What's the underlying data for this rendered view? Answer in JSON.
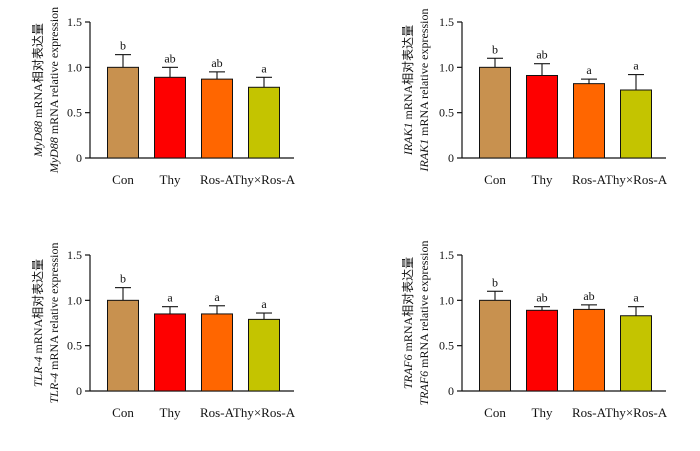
{
  "chart_data": [
    {
      "type": "bar",
      "categories": [
        "Con",
        "Thy",
        "Ros-A",
        "Thy×Ros-A"
      ],
      "values": [
        1.0,
        0.89,
        0.87,
        0.78
      ],
      "errors": [
        0.14,
        0.11,
        0.08,
        0.11
      ],
      "significance": [
        "b",
        "ab",
        "ab",
        "a"
      ],
      "ylabel_line1": {
        "gene": "MyD88",
        "rest": " mRNA相对表达量"
      },
      "ylabel_line2": {
        "gene": "MyD88",
        "rest": " mRNA relative expression"
      },
      "ylim": [
        0,
        1.5
      ],
      "yticks": [
        "0",
        "0.5",
        "1.0",
        "1.5"
      ],
      "colors": [
        "#c8914f",
        "#fe0000",
        "#ff6600",
        "#c4c400"
      ]
    },
    {
      "type": "bar",
      "categories": [
        "Con",
        "Thy",
        "Ros-A",
        "Thy×Ros-A"
      ],
      "values": [
        1.0,
        0.91,
        0.82,
        0.75
      ],
      "errors": [
        0.1,
        0.13,
        0.05,
        0.17
      ],
      "significance": [
        "b",
        "ab",
        "a",
        "a"
      ],
      "ylabel_line1": {
        "gene": "IRAK1",
        "rest": " mRNA相对表达量"
      },
      "ylabel_line2": {
        "gene": "IRAK1",
        "rest": " mRNA relative expression"
      },
      "ylim": [
        0,
        1.5
      ],
      "yticks": [
        "0",
        "0.5",
        "1.0",
        "1.5"
      ],
      "colors": [
        "#c8914f",
        "#fe0000",
        "#ff6600",
        "#c4c400"
      ]
    },
    {
      "type": "bar",
      "categories": [
        "Con",
        "Thy",
        "Ros-A",
        "Thy×Ros-A"
      ],
      "values": [
        1.0,
        0.85,
        0.85,
        0.79
      ],
      "errors": [
        0.14,
        0.08,
        0.09,
        0.07
      ],
      "significance": [
        "b",
        "a",
        "a",
        "a"
      ],
      "ylabel_line1": {
        "gene": "TLR-4",
        "rest": " mRNA相对表达量"
      },
      "ylabel_line2": {
        "gene": "TLR-4",
        "rest": " mRNA relative expression"
      },
      "ylim": [
        0,
        1.5
      ],
      "yticks": [
        "0",
        "0.5",
        "1.0",
        "1.5"
      ],
      "colors": [
        "#c8914f",
        "#fe0000",
        "#ff6600",
        "#c4c400"
      ]
    },
    {
      "type": "bar",
      "categories": [
        "Con",
        "Thy",
        "Ros-A",
        "Thy×Ros-A"
      ],
      "values": [
        1.0,
        0.89,
        0.9,
        0.83
      ],
      "errors": [
        0.1,
        0.04,
        0.05,
        0.1
      ],
      "significance": [
        "b",
        "ab",
        "ab",
        "a"
      ],
      "ylabel_line1": {
        "gene": "TRAF6",
        "rest": " mRNA相对表达量"
      },
      "ylabel_line2": {
        "gene": "TRAF6",
        "rest": " mRNA relative expression"
      },
      "ylim": [
        0,
        1.5
      ],
      "yticks": [
        "0",
        "0.5",
        "1.0",
        "1.5"
      ],
      "colors": [
        "#c8914f",
        "#fe0000",
        "#ff6600",
        "#c4c400"
      ]
    }
  ]
}
